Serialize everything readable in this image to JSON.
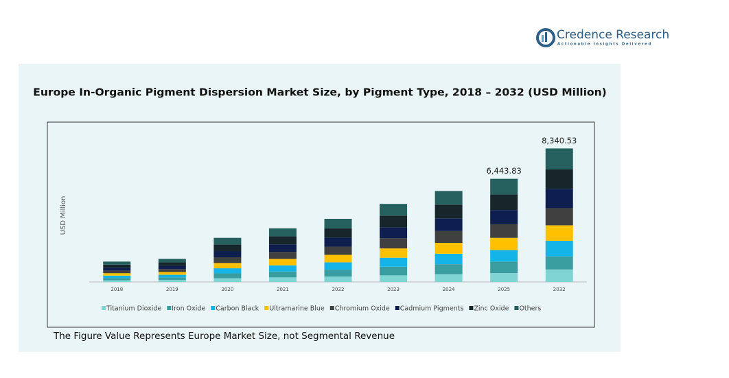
{
  "brand": {
    "name": "Credence Research",
    "tagline": "Actionable Insights Delivered"
  },
  "chart_data": {
    "type": "stacked_bar",
    "title": "Europe In-Organic Pigment Dispersion Market Size, by Pigment Type, 2018 – 2032 (USD Million)",
    "y_label": "USD Million",
    "footnote": "The Figure Value Represents Europe Market Size, not Segmental Revenue",
    "categories": [
      "2018",
      "2019",
      "2020",
      "2021",
      "2022",
      "2023",
      "2024",
      "2025",
      "2032"
    ],
    "ylim": [
      0,
      9000
    ],
    "series": [
      {
        "name": "Titanium Dioxide",
        "color": "#7fd4d4",
        "values": [
          108,
          123,
          234,
          285,
          335,
          414,
          483,
          551,
          780
        ]
      },
      {
        "name": "Iron Oxide",
        "color": "#3a9ea0",
        "values": [
          140,
          159,
          303,
          368,
          434,
          536,
          625,
          721,
          820
        ]
      },
      {
        "name": "Carbon Black",
        "color": "#14b4e8",
        "values": [
          146,
          166,
          317,
          385,
          453,
          561,
          653,
          721,
          970
        ]
      },
      {
        "name": "Ultramarine Blue",
        "color": "#ffc000",
        "values": [
          153,
          173,
          331,
          402,
          473,
          585,
          682,
          763,
          970
        ]
      },
      {
        "name": "Chromium Oxide",
        "color": "#404040",
        "values": [
          165,
          187,
          358,
          435,
          513,
          634,
          739,
          848,
          1070
        ]
      },
      {
        "name": "Cadmium Pigments",
        "color": "#0e1f4f",
        "values": [
          178,
          202,
          386,
          469,
          552,
          683,
          795,
          890,
          1210
        ]
      },
      {
        "name": "Zinc Oxide",
        "color": "#17262b",
        "values": [
          191,
          216,
          413,
          503,
          591,
          731,
          852,
          975,
          1210
        ]
      },
      {
        "name": "Others",
        "color": "#255f5e",
        "values": [
          191,
          216,
          414,
          503,
          592,
          732,
          853,
          975,
          1310
        ]
      }
    ],
    "totals": [
      null,
      null,
      null,
      null,
      null,
      null,
      null,
      6443.83,
      8340.53
    ],
    "total_labels": [
      null,
      null,
      null,
      null,
      null,
      null,
      null,
      "6,443.83",
      "8,340.53"
    ]
  }
}
